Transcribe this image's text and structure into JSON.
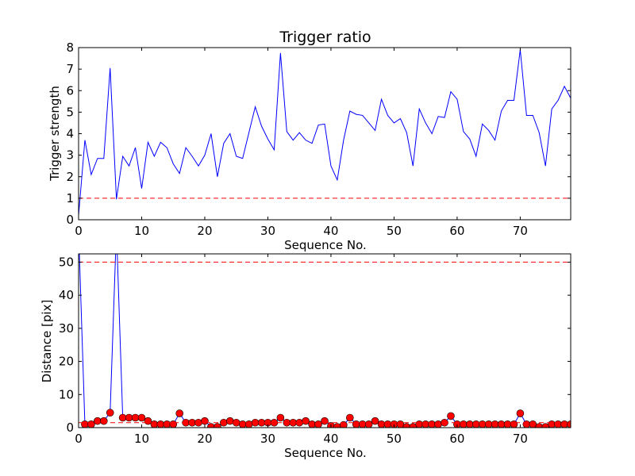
{
  "chart_data": [
    {
      "type": "line",
      "title": "Trigger ratio",
      "xlabel": "Sequence No.",
      "ylabel": "Trigger strength",
      "xlim": [
        0,
        78
      ],
      "ylim": [
        0,
        8
      ],
      "xticks": [
        0,
        10,
        20,
        30,
        40,
        50,
        60,
        70
      ],
      "yticks": [
        0,
        1,
        2,
        3,
        4,
        5,
        6,
        7,
        8
      ],
      "grid": false,
      "series": [
        {
          "color": "#0000ff",
          "style": "solid",
          "x": [
            0,
            1,
            2,
            3,
            4,
            5,
            6,
            7,
            8,
            9,
            10,
            11,
            12,
            13,
            14,
            15,
            16,
            17,
            18,
            19,
            20,
            21,
            22,
            23,
            24,
            25,
            26,
            27,
            28,
            29,
            30,
            31,
            32,
            33,
            34,
            35,
            36,
            37,
            38,
            39,
            40,
            41,
            42,
            43,
            44,
            45,
            46,
            47,
            48,
            49,
            50,
            51,
            52,
            53,
            54,
            55,
            56,
            57,
            58,
            59,
            60,
            61,
            62,
            63,
            64,
            65,
            66,
            67,
            68,
            69,
            70,
            71,
            72,
            73,
            74,
            75,
            76,
            77,
            78
          ],
          "values": [
            0.2,
            3.7,
            2.1,
            2.85,
            2.85,
            7.05,
            0.95,
            2.95,
            2.5,
            3.35,
            1.45,
            3.6,
            2.95,
            3.6,
            3.35,
            2.6,
            2.15,
            3.35,
            2.95,
            2.5,
            3.0,
            4.0,
            2.0,
            3.55,
            4.0,
            2.95,
            2.85,
            4.05,
            5.25,
            4.35,
            3.75,
            3.25,
            7.75,
            4.1,
            3.7,
            4.05,
            3.7,
            3.55,
            4.4,
            4.45,
            2.5,
            1.85,
            3.7,
            5.05,
            4.9,
            4.85,
            4.5,
            4.15,
            5.6,
            4.85,
            4.5,
            4.7,
            4.05,
            2.5,
            5.15,
            4.5,
            4.0,
            4.8,
            4.75,
            5.95,
            5.6,
            4.1,
            3.75,
            2.95,
            4.45,
            4.15,
            3.7,
            5.05,
            5.55,
            5.55,
            7.9,
            4.85,
            4.85,
            4.05,
            2.5,
            5.15,
            5.55,
            6.2,
            5.65
          ]
        },
        {
          "color": "#ff0000",
          "style": "dashed",
          "x": [
            0,
            78
          ],
          "values": [
            1,
            1
          ]
        }
      ]
    },
    {
      "type": "line",
      "title": "",
      "xlabel": "Sequence No.",
      "ylabel": "Distance [pix]",
      "xlim": [
        0,
        78
      ],
      "ylim": [
        0,
        52.5
      ],
      "xticks": [
        0,
        10,
        20,
        30,
        40,
        50,
        60,
        70
      ],
      "yticks": [
        0,
        10,
        20,
        30,
        40,
        50
      ],
      "grid": false,
      "series": [
        {
          "color": "#0000ff",
          "style": "solid",
          "marker": "circle",
          "marker_color": "#ff0000",
          "x": [
            0,
            1,
            2,
            3,
            4,
            5,
            6,
            7,
            8,
            9,
            10,
            11,
            12,
            13,
            14,
            15,
            16,
            17,
            18,
            19,
            20,
            21,
            22,
            23,
            24,
            25,
            26,
            27,
            28,
            29,
            30,
            31,
            32,
            33,
            34,
            35,
            36,
            37,
            38,
            39,
            40,
            41,
            42,
            43,
            44,
            45,
            46,
            47,
            48,
            49,
            50,
            51,
            52,
            53,
            54,
            55,
            56,
            57,
            58,
            59,
            60,
            61,
            62,
            63,
            64,
            65,
            66,
            67,
            68,
            69,
            70,
            71,
            72,
            73,
            74,
            75,
            76,
            77,
            78
          ],
          "values": [
            60,
            1.0,
            1.0,
            2.0,
            2.0,
            4.5,
            60,
            3.0,
            3.0,
            3.0,
            3.0,
            2.0,
            1.0,
            1.0,
            1.0,
            1.0,
            4.3,
            1.5,
            1.5,
            1.5,
            2.0,
            0.2,
            0.2,
            1.5,
            2.0,
            1.5,
            1.0,
            1.0,
            1.5,
            1.5,
            1.5,
            1.5,
            3.0,
            1.5,
            1.5,
            1.5,
            2.0,
            1.0,
            1.0,
            2.0,
            0.5,
            0.2,
            0.8,
            3.0,
            1.0,
            1.0,
            1.0,
            2.0,
            1.0,
            1.0,
            1.0,
            1.0,
            0.2,
            0.2,
            1.0,
            1.0,
            1.0,
            1.0,
            1.5,
            3.5,
            1.0,
            1.0,
            1.0,
            1.0,
            1.0,
            1.0,
            1.0,
            1.0,
            1.0,
            1.0,
            4.3,
            1.0,
            1.0,
            0.2,
            0.2,
            1.0,
            1.0,
            1.0,
            1.0
          ]
        },
        {
          "color": "#ff0000",
          "style": "dashed",
          "x": [
            0,
            78
          ],
          "values": [
            50,
            50
          ]
        },
        {
          "color": "#ff0000",
          "style": "dashed",
          "x": [
            0,
            78
          ],
          "values": [
            1.5,
            1.5
          ]
        }
      ]
    }
  ]
}
